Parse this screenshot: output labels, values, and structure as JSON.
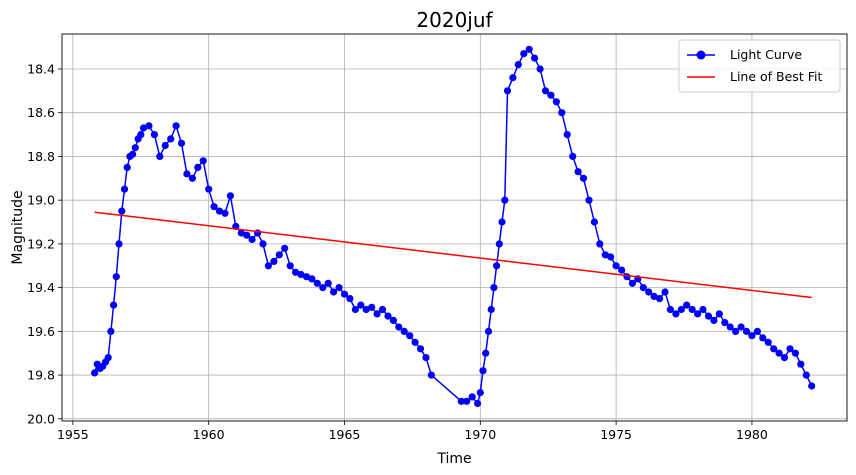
{
  "chart_data": {
    "type": "line",
    "title": "2020juf",
    "xlabel": "Time",
    "ylabel": "Magnitude",
    "xlim": [
      1954.6,
      1983.5
    ],
    "ylim": [
      20.01,
      18.24
    ],
    "y_inverted": true,
    "xticks": [
      1955,
      1960,
      1965,
      1970,
      1975,
      1980
    ],
    "yticks": [
      18.4,
      18.6,
      18.8,
      19.0,
      19.2,
      19.4,
      19.6,
      19.8,
      20.0
    ],
    "grid": true,
    "legend_position": "top-right",
    "series": [
      {
        "name": "Light Curve",
        "color": "#0000ff",
        "marker": "circle",
        "x": [
          1955.8,
          1955.9,
          1956.0,
          1956.1,
          1956.2,
          1956.3,
          1956.4,
          1956.5,
          1956.6,
          1956.7,
          1956.8,
          1956.9,
          1957.0,
          1957.1,
          1957.2,
          1957.3,
          1957.4,
          1957.5,
          1957.6,
          1957.8,
          1958.0,
          1958.2,
          1958.4,
          1958.6,
          1958.8,
          1959.0,
          1959.2,
          1959.4,
          1959.6,
          1959.8,
          1960.0,
          1960.2,
          1960.4,
          1960.6,
          1960.8,
          1961.0,
          1961.2,
          1961.4,
          1961.6,
          1961.8,
          1962.0,
          1962.2,
          1962.4,
          1962.6,
          1962.8,
          1963.0,
          1963.2,
          1963.4,
          1963.6,
          1963.8,
          1964.0,
          1964.2,
          1964.4,
          1964.6,
          1964.8,
          1965.0,
          1965.2,
          1965.4,
          1965.6,
          1965.8,
          1966.0,
          1966.2,
          1966.4,
          1966.6,
          1966.8,
          1967.0,
          1967.2,
          1967.4,
          1967.6,
          1967.8,
          1968.0,
          1968.2,
          1969.3,
          1969.5,
          1969.7,
          1969.9,
          1970.0,
          1970.1,
          1970.2,
          1970.3,
          1970.4,
          1970.5,
          1970.6,
          1970.7,
          1970.8,
          1970.9,
          1971.0,
          1971.2,
          1971.4,
          1971.6,
          1971.8,
          1972.0,
          1972.2,
          1972.4,
          1972.6,
          1972.8,
          1973.0,
          1973.2,
          1973.4,
          1973.6,
          1973.8,
          1974.0,
          1974.2,
          1974.4,
          1974.6,
          1974.8,
          1975.0,
          1975.2,
          1975.4,
          1975.6,
          1975.8,
          1976.0,
          1976.2,
          1976.4,
          1976.6,
          1976.8,
          1977.0,
          1977.2,
          1977.4,
          1977.6,
          1977.8,
          1978.0,
          1978.2,
          1978.4,
          1978.6,
          1978.8,
          1979.0,
          1979.2,
          1979.4,
          1979.6,
          1979.8,
          1980.0,
          1980.2,
          1980.4,
          1980.6,
          1980.8,
          1981.0,
          1981.2,
          1981.4,
          1981.6,
          1981.8,
          1982.0,
          1982.2
        ],
        "y": [
          19.79,
          19.75,
          19.77,
          19.76,
          19.74,
          19.72,
          19.6,
          19.48,
          19.35,
          19.2,
          19.05,
          18.95,
          18.85,
          18.8,
          18.79,
          18.76,
          18.72,
          18.7,
          18.67,
          18.66,
          18.7,
          18.8,
          18.75,
          18.72,
          18.66,
          18.74,
          18.88,
          18.9,
          18.85,
          18.82,
          18.95,
          19.03,
          19.05,
          19.06,
          18.98,
          19.12,
          19.15,
          19.16,
          19.18,
          19.15,
          19.2,
          19.3,
          19.28,
          19.25,
          19.22,
          19.3,
          19.33,
          19.34,
          19.35,
          19.36,
          19.38,
          19.4,
          19.38,
          19.42,
          19.4,
          19.43,
          19.45,
          19.5,
          19.48,
          19.5,
          19.49,
          19.52,
          19.5,
          19.53,
          19.55,
          19.58,
          19.6,
          19.62,
          19.65,
          19.68,
          19.72,
          19.8,
          19.92,
          19.92,
          19.9,
          19.93,
          19.88,
          19.78,
          19.7,
          19.6,
          19.5,
          19.4,
          19.3,
          19.2,
          19.1,
          19.0,
          18.5,
          18.44,
          18.38,
          18.33,
          18.31,
          18.35,
          18.4,
          18.5,
          18.52,
          18.55,
          18.6,
          18.7,
          18.8,
          18.87,
          18.9,
          19.0,
          19.1,
          19.2,
          19.25,
          19.26,
          19.3,
          19.32,
          19.35,
          19.38,
          19.36,
          19.4,
          19.42,
          19.44,
          19.45,
          19.42,
          19.5,
          19.52,
          19.5,
          19.48,
          19.5,
          19.52,
          19.5,
          19.53,
          19.55,
          19.52,
          19.56,
          19.58,
          19.6,
          19.58,
          19.6,
          19.62,
          19.6,
          19.63,
          19.65,
          19.68,
          19.7,
          19.72,
          19.68,
          19.7,
          19.75,
          19.8,
          19.85
        ]
      },
      {
        "name": "Line of Best Fit",
        "color": "#ff0000",
        "x": [
          1955.8,
          1982.2
        ],
        "y": [
          19.055,
          19.445
        ]
      }
    ]
  }
}
